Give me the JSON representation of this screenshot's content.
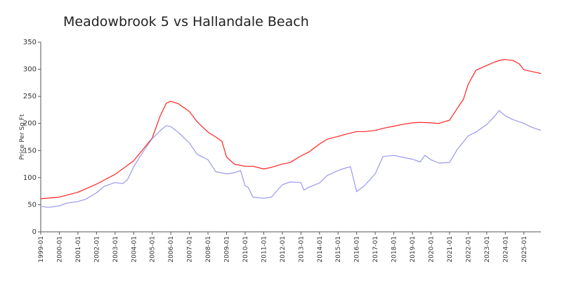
{
  "chart_data": {
    "type": "line",
    "title": "Meadowbrook 5 vs Hallandale Beach",
    "xlabel": "",
    "ylabel": "Price Per Sq Ft",
    "ylim": [
      0,
      350
    ],
    "yticks": [
      0,
      50,
      100,
      150,
      200,
      250,
      300,
      350
    ],
    "x_range": [
      "1999-01",
      "2025-12"
    ],
    "xticks": [
      "1999-01",
      "2000-01",
      "2001-01",
      "2002-01",
      "2003-01",
      "2004-01",
      "2005-01",
      "2006-01",
      "2007-01",
      "2008-01",
      "2009-01",
      "2010-01",
      "2011-01",
      "2012-01",
      "2013-01",
      "2014-01",
      "2015-01",
      "2016-01",
      "2017-01",
      "2018-01",
      "2019-01",
      "2020-01",
      "2021-01",
      "2022-01",
      "2023-01",
      "2024-01",
      "2025-01"
    ],
    "grid": false,
    "legend": "none",
    "series": [
      {
        "color": "#ff2222",
        "points": [
          [
            "1999-01",
            61
          ],
          [
            "2000-01",
            64
          ],
          [
            "2001-01",
            73
          ],
          [
            "2002-01",
            88
          ],
          [
            "2003-01",
            106
          ],
          [
            "2004-01",
            131
          ],
          [
            "2005-01",
            173
          ],
          [
            "2005-06",
            213
          ],
          [
            "2005-10",
            237
          ],
          [
            "2006-01",
            241
          ],
          [
            "2006-06",
            236
          ],
          [
            "2007-01",
            222
          ],
          [
            "2007-06",
            203
          ],
          [
            "2008-01",
            184
          ],
          [
            "2008-06",
            175
          ],
          [
            "2008-10",
            167
          ],
          [
            "2009-01",
            138
          ],
          [
            "2009-06",
            125
          ],
          [
            "2010-01",
            121
          ],
          [
            "2010-06",
            121
          ],
          [
            "2011-01",
            116
          ],
          [
            "2011-06",
            119
          ],
          [
            "2012-01",
            125
          ],
          [
            "2012-06",
            128
          ],
          [
            "2013-01",
            140
          ],
          [
            "2013-06",
            147
          ],
          [
            "2014-01",
            162
          ],
          [
            "2014-06",
            171
          ],
          [
            "2015-01",
            176
          ],
          [
            "2015-06",
            180
          ],
          [
            "2016-01",
            185
          ],
          [
            "2016-06",
            185
          ],
          [
            "2017-01",
            187
          ],
          [
            "2017-06",
            191
          ],
          [
            "2018-01",
            195
          ],
          [
            "2018-06",
            198
          ],
          [
            "2019-01",
            201
          ],
          [
            "2019-06",
            202
          ],
          [
            "2020-01",
            201
          ],
          [
            "2020-06",
            200
          ],
          [
            "2021-01",
            206
          ],
          [
            "2021-06",
            228
          ],
          [
            "2021-10",
            245
          ],
          [
            "2022-01",
            272
          ],
          [
            "2022-06",
            298
          ],
          [
            "2023-01",
            307
          ],
          [
            "2023-06",
            313
          ],
          [
            "2023-10",
            317
          ],
          [
            "2024-01",
            318
          ],
          [
            "2024-06",
            316
          ],
          [
            "2024-10",
            310
          ],
          [
            "2025-01",
            299
          ],
          [
            "2025-06",
            296
          ],
          [
            "2025-12",
            292
          ]
        ]
      },
      {
        "color": "#9999ee",
        "points": [
          [
            "1999-01",
            47
          ],
          [
            "1999-06",
            45
          ],
          [
            "2000-01",
            48
          ],
          [
            "2000-06",
            53
          ],
          [
            "2001-01",
            56
          ],
          [
            "2001-06",
            60
          ],
          [
            "2002-01",
            72
          ],
          [
            "2002-06",
            84
          ],
          [
            "2003-01",
            91
          ],
          [
            "2003-06",
            89
          ],
          [
            "2003-09",
            96
          ],
          [
            "2004-01",
            120
          ],
          [
            "2004-06",
            143
          ],
          [
            "2005-01",
            172
          ],
          [
            "2005-06",
            186
          ],
          [
            "2005-10",
            196
          ],
          [
            "2006-01",
            194
          ],
          [
            "2006-06",
            183
          ],
          [
            "2007-01",
            164
          ],
          [
            "2007-06",
            143
          ],
          [
            "2008-01",
            133
          ],
          [
            "2008-06",
            111
          ],
          [
            "2009-01",
            107
          ],
          [
            "2009-06",
            109
          ],
          [
            "2009-10",
            113
          ],
          [
            "2010-01",
            85
          ],
          [
            "2010-03",
            82
          ],
          [
            "2010-06",
            64
          ],
          [
            "2011-01",
            62
          ],
          [
            "2011-06",
            64
          ],
          [
            "2012-01",
            87
          ],
          [
            "2012-06",
            92
          ],
          [
            "2013-01",
            91
          ],
          [
            "2013-03",
            77
          ],
          [
            "2013-06",
            82
          ],
          [
            "2014-01",
            90
          ],
          [
            "2014-06",
            104
          ],
          [
            "2015-01",
            113
          ],
          [
            "2015-06",
            118
          ],
          [
            "2015-09",
            120
          ],
          [
            "2016-01",
            74
          ],
          [
            "2016-06",
            85
          ],
          [
            "2017-01",
            107
          ],
          [
            "2017-06",
            139
          ],
          [
            "2018-01",
            141
          ],
          [
            "2018-06",
            138
          ],
          [
            "2019-01",
            134
          ],
          [
            "2019-06",
            129
          ],
          [
            "2019-09",
            141
          ],
          [
            "2020-01",
            133
          ],
          [
            "2020-06",
            127
          ],
          [
            "2021-01",
            128
          ],
          [
            "2021-06",
            152
          ],
          [
            "2022-01",
            177
          ],
          [
            "2022-06",
            184
          ],
          [
            "2023-01",
            198
          ],
          [
            "2023-06",
            213
          ],
          [
            "2023-09",
            224
          ],
          [
            "2024-01",
            214
          ],
          [
            "2024-06",
            207
          ],
          [
            "2025-01",
            200
          ],
          [
            "2025-06",
            193
          ],
          [
            "2025-12",
            187
          ]
        ]
      }
    ]
  }
}
